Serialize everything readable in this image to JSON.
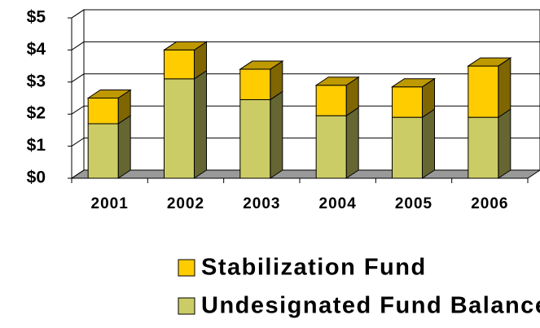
{
  "chart_data": {
    "type": "bar3d_stacked",
    "categories": [
      "2001",
      "2002",
      "2003",
      "2004",
      "2005",
      "2006"
    ],
    "series": [
      {
        "name": "Undesignated Fund Balance",
        "color": "#CCCC66",
        "values": [
          1.7,
          3.1,
          2.45,
          1.95,
          1.9,
          1.9
        ]
      },
      {
        "name": "Stabilization Fund",
        "color": "#FFCC00",
        "values": [
          0.8,
          0.9,
          0.95,
          0.95,
          0.95,
          1.6
        ]
      }
    ],
    "ylim": [
      0,
      5
    ],
    "yticks": [
      {
        "value": 0,
        "label": "$0"
      },
      {
        "value": 1,
        "label": "$1"
      },
      {
        "value": 2,
        "label": "$2"
      },
      {
        "value": 3,
        "label": "$3"
      },
      {
        "value": 4,
        "label": "$4"
      },
      {
        "value": 5,
        "label": "$5"
      }
    ],
    "grid": true
  }
}
